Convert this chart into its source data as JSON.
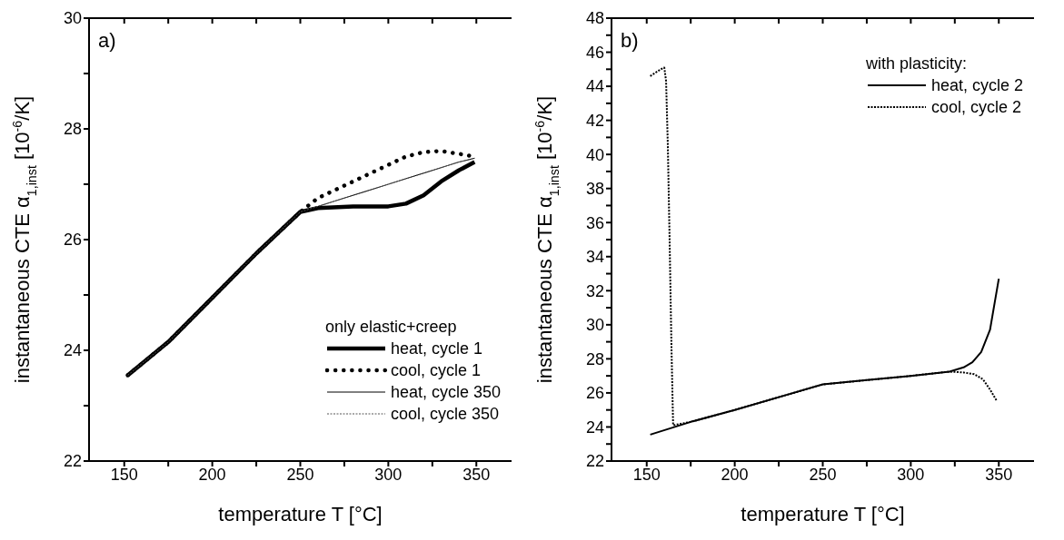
{
  "chart_data": [
    {
      "type": "line",
      "xlabel": "temperature T [°C]",
      "ylabel": "instantaneous CTE α$_{1,inst}$ [10$^{-6}$/K]",
      "xlim": [
        130,
        370
      ],
      "xticks": [
        150,
        {
          "value": 175,
          "label": null
        },
        200,
        {
          "value": 225,
          "label": null
        },
        250,
        {
          "value": 275,
          "label": null
        },
        300,
        {
          "value": 325,
          "label": null
        },
        350
      ],
      "ylim": [
        22,
        30
      ],
      "yticks": [
        22,
        {
          "value": 23,
          "label": null
        },
        24,
        {
          "value": 25,
          "label": null
        },
        26,
        {
          "value": 27,
          "label": null
        },
        28,
        {
          "value": 29,
          "label": null
        },
        30
      ],
      "x": [
        152,
        175,
        200,
        225,
        250,
        260,
        280,
        300,
        310,
        320,
        330,
        340,
        349
      ],
      "legend": "bottom right",
      "legend_title": "only elastic+creep",
      "annotations": [
        "a)"
      ],
      "series": [
        {
          "name": "heat, cycle 1",
          "color": "#000000",
          "line_style": "solid",
          "values": [
            23.55,
            24.15,
            24.95,
            25.75,
            26.5,
            26.57,
            26.6,
            26.6,
            26.65,
            26.8,
            27.05,
            27.25,
            27.4
          ]
        },
        {
          "name": "cool, cycle 1",
          "color": "#000000",
          "line_style": "dotted",
          "values": [
            23.55,
            24.15,
            24.95,
            25.75,
            26.5,
            26.75,
            27.05,
            27.35,
            27.5,
            27.58,
            27.6,
            27.55,
            27.5
          ]
        },
        {
          "name": "heat, cycle 350",
          "color": "#000000",
          "line_style": "solid",
          "values": [
            23.55,
            24.15,
            24.95,
            25.75,
            26.5,
            26.6,
            26.8,
            27.0,
            27.1,
            27.2,
            27.3,
            27.4,
            27.47
          ]
        },
        {
          "name": "cool, cycle 350",
          "color": "#555555",
          "line_style": "dotted",
          "values": [
            23.55,
            24.15,
            24.95,
            25.75,
            26.5,
            26.6,
            26.8,
            27.0,
            27.1,
            27.2,
            27.3,
            27.4,
            27.47
          ]
        }
      ]
    },
    {
      "type": "line",
      "xlabel": "temperature T [°C]",
      "ylabel": "instantaneous CTE α$_{1,inst}$ [10$^{-6}$/K]",
      "xlim": [
        130,
        370
      ],
      "xticks": [
        150,
        {
          "value": 175,
          "label": null
        },
        200,
        {
          "value": 225,
          "label": null
        },
        250,
        {
          "value": 275,
          "label": null
        },
        300,
        {
          "value": 325,
          "label": null
        },
        350
      ],
      "ylim": [
        22,
        48
      ],
      "yticks": [
        22,
        {
          "value": 23,
          "label": null
        },
        24,
        {
          "value": 25,
          "label": null
        },
        26,
        {
          "value": 27,
          "label": null
        },
        28,
        {
          "value": 29,
          "label": null
        },
        30,
        {
          "value": 31,
          "label": null
        },
        32,
        {
          "value": 33,
          "label": null
        },
        34,
        {
          "value": 35,
          "label": null
        },
        36,
        {
          "value": 37,
          "label": null
        },
        38,
        {
          "value": 39,
          "label": null
        },
        40,
        {
          "value": 41,
          "label": null
        },
        42,
        {
          "value": 43,
          "label": null
        },
        44,
        {
          "value": 45,
          "label": null
        },
        46,
        {
          "value": 47,
          "label": null
        },
        48
      ],
      "legend": "top right",
      "legend_title": "with plasticity:",
      "annotations": [
        "b)"
      ],
      "series": [
        {
          "name": "heat, cycle 2",
          "color": "#000000",
          "line_style": "solid",
          "x": [
            152,
            175,
            200,
            225,
            250,
            275,
            300,
            322,
            330,
            335,
            340,
            345,
            348,
            350
          ],
          "values": [
            23.55,
            24.3,
            25.0,
            25.75,
            26.5,
            26.75,
            27.0,
            27.25,
            27.5,
            27.8,
            28.4,
            29.7,
            31.5,
            32.7
          ]
        },
        {
          "name": "cool, cycle 2",
          "color": "#000000",
          "line_style": "dotted",
          "x": [
            152,
            155,
            158,
            160,
            161,
            162,
            163,
            164,
            165,
            175,
            200,
            250,
            300,
            322,
            330,
            336,
            341,
            345,
            349
          ],
          "values": [
            44.6,
            44.8,
            45.0,
            45.1,
            44.3,
            40.5,
            35,
            29,
            24.1,
            24.3,
            25.0,
            26.5,
            27.0,
            27.25,
            27.2,
            27.1,
            26.8,
            26.2,
            25.5
          ]
        }
      ]
    }
  ]
}
